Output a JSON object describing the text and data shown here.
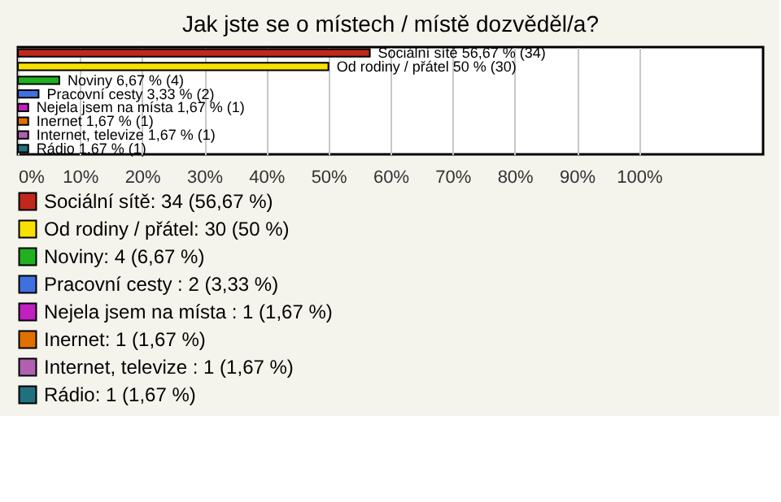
{
  "chart_data": {
    "type": "bar",
    "orientation": "horizontal",
    "title": "Jak jste se o místech / místě dozvěděl/a?",
    "categories": [
      null,
      null,
      null,
      null,
      null,
      null,
      null,
      null
    ],
    "series": [
      {
        "name": "Sociální sítě: 34 (56,67 %)",
        "color": "#c0281c",
        "values": [
          56.67,
          null,
          null,
          null,
          null,
          null,
          null,
          null
        ],
        "value_labels": [
          "Sociální sítě 56,67 % (34)",
          null,
          null,
          null,
          null,
          null,
          null,
          null
        ]
      },
      {
        "name": "Od rodiny / přátel: 30 (50 %)",
        "color": "#f8e000",
        "values": [
          null,
          50,
          null,
          null,
          null,
          null,
          null,
          null
        ],
        "value_labels": [
          null,
          "Od rodiny / přátel 50 % (30)",
          null,
          null,
          null,
          null,
          null,
          null
        ]
      },
      {
        "name": "Noviny: 4 (6,67 %)",
        "color": "#20b020",
        "values": [
          null,
          null,
          6.67,
          null,
          null,
          null,
          null,
          null
        ],
        "value_labels": [
          null,
          null,
          "Noviny 6,67 % (4)",
          null,
          null,
          null,
          null,
          null
        ]
      },
      {
        "name": "Pracovní cesty : 2 (3,33 %)",
        "color": "#4070e0",
        "values": [
          null,
          null,
          null,
          3.33,
          null,
          null,
          null,
          null
        ],
        "value_labels": [
          null,
          null,
          null,
          "Pracovní cesty  3,33 % (2)",
          null,
          null,
          null,
          null
        ]
      },
      {
        "name": "Nejela jsem na místa : 1 (1,67 %)",
        "color": "#c020c0",
        "values": [
          null,
          null,
          null,
          null,
          1.67,
          null,
          null,
          null
        ],
        "value_labels": [
          null,
          null,
          null,
          null,
          "Nejela jsem na místa  1,67 % (1)",
          null,
          null,
          null
        ]
      },
      {
        "name": "Inernet: 1 (1,67 %)",
        "color": "#e07000",
        "values": [
          null,
          null,
          null,
          null,
          null,
          1.67,
          null,
          null
        ],
        "value_labels": [
          null,
          null,
          null,
          null,
          null,
          "Inernet 1,67 % (1)",
          null,
          null
        ]
      },
      {
        "name": "Internet, televize : 1 (1,67 %)",
        "color": "#b060b0",
        "values": [
          null,
          null,
          null,
          null,
          null,
          null,
          1.67,
          null
        ],
        "value_labels": [
          null,
          null,
          null,
          null,
          null,
          null,
          "Internet, televize  1,67 % (1)",
          null
        ]
      },
      {
        "name": "Rádio: 1 (1,67 %)",
        "color": "#207080",
        "values": [
          null,
          null,
          null,
          null,
          null,
          null,
          null,
          1.67
        ],
        "value_labels": [
          null,
          null,
          null,
          null,
          null,
          null,
          null,
          "Rádio 1,67 % (1)"
        ]
      }
    ],
    "xlim": [
      0,
      120
    ],
    "xticks": [
      {
        "value": 0,
        "label": "0%"
      },
      {
        "value": 10,
        "label": "10%"
      },
      {
        "value": 20,
        "label": "20%"
      },
      {
        "value": 30,
        "label": "30%"
      },
      {
        "value": 40,
        "label": "40%"
      },
      {
        "value": 50,
        "label": "50%"
      },
      {
        "value": 60,
        "label": "60%"
      },
      {
        "value": 70,
        "label": "70%"
      },
      {
        "value": 80,
        "label": "80%"
      },
      {
        "value": 90,
        "label": "90%"
      },
      {
        "value": 100,
        "label": "100%"
      }
    ],
    "grid": "x",
    "legend": "bottom left"
  }
}
